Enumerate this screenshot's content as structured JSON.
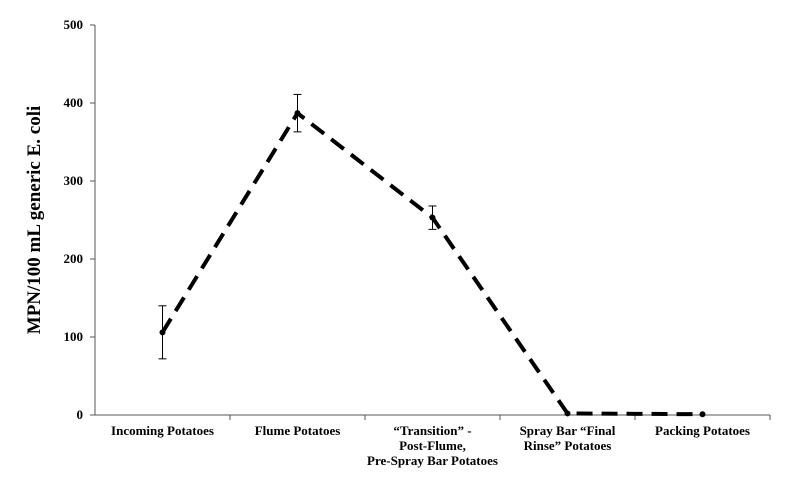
{
  "chart_data": {
    "type": "line",
    "ylabel": "MPN/100 mL generic E. coli",
    "categories": [
      [
        "Incoming Potatoes"
      ],
      [
        "Flume Potatoes"
      ],
      [
        "“Transition” -",
        "Post-Flume,",
        "Pre-Spray Bar Potatoes"
      ],
      [
        "Spray Bar “Final",
        "Rinse” Potatoes"
      ],
      [
        "Packing Potatoes"
      ]
    ],
    "series": [
      {
        "color": "#000000",
        "values": [
          106,
          387,
          253,
          2,
          1
        ],
        "errors": [
          34,
          24,
          15,
          null,
          null
        ]
      }
    ],
    "ylim": [
      0,
      500
    ],
    "yticks": [
      0,
      100,
      200,
      300,
      400,
      500
    ],
    "grid": false
  }
}
